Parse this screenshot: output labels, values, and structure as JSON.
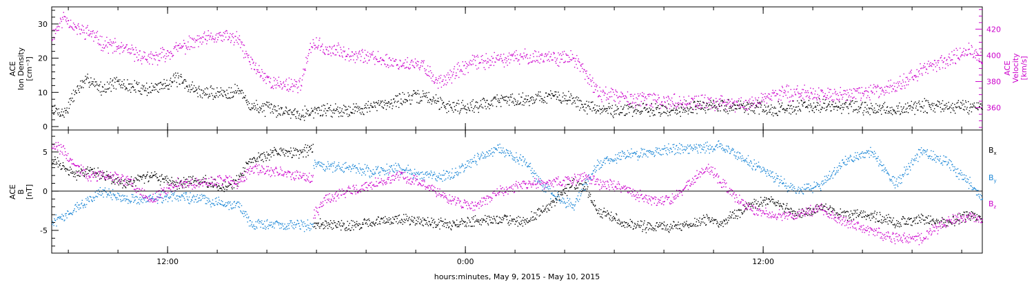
{
  "chart_data": [
    {
      "type": "scatter",
      "panel": "top",
      "left_axis": {
        "label_lines": [
          "ACE",
          "Ion Density",
          "[cm⁻³]"
        ],
        "ticks": [
          0,
          10,
          20,
          30
        ],
        "ylim": [
          -1,
          35
        ]
      },
      "right_axis": {
        "label_lines": [
          "ACE",
          "Velocity",
          "[km/s]"
        ],
        "ticks": [
          360,
          380,
          400,
          420
        ],
        "ylim": [
          343,
          437
        ]
      },
      "colors": {
        "density": "#000000",
        "velocity": "#cc00cc"
      },
      "series": [
        {
          "key": "density",
          "axis": "left",
          "anchors": [
            [
              0.0,
              5
            ],
            [
              0.5,
              4
            ],
            [
              1.0,
              11
            ],
            [
              1.5,
              14
            ],
            [
              2.0,
              11
            ],
            [
              2.5,
              13
            ],
            [
              3.0,
              12
            ],
            [
              4.0,
              11
            ],
            [
              5.0,
              14
            ],
            [
              6.0,
              10
            ],
            [
              7.0,
              10
            ],
            [
              7.5,
              11
            ],
            [
              8.0,
              6
            ],
            [
              9.0,
              5
            ],
            [
              10.0,
              4
            ],
            [
              11.0,
              5
            ],
            [
              12.0,
              5
            ],
            [
              13.0,
              6
            ],
            [
              14.0,
              8
            ],
            [
              15.0,
              9
            ],
            [
              16.0,
              6
            ],
            [
              17.0,
              6
            ],
            [
              18.0,
              8
            ],
            [
              19.0,
              8
            ],
            [
              20.0,
              9
            ],
            [
              21.0,
              8
            ],
            [
              21.5,
              6
            ],
            [
              22.0,
              5
            ],
            [
              23.0,
              5
            ],
            [
              24.0,
              5
            ],
            [
              25.0,
              5
            ],
            [
              26.0,
              6
            ],
            [
              27.0,
              6
            ],
            [
              28.0,
              6
            ],
            [
              29.0,
              5
            ],
            [
              30.0,
              6
            ],
            [
              31.0,
              6
            ],
            [
              32.0,
              6
            ],
            [
              33.0,
              5
            ],
            [
              34.0,
              5
            ],
            [
              35.0,
              6
            ],
            [
              36.0,
              6
            ],
            [
              37.0,
              6
            ],
            [
              37.5,
              6
            ]
          ]
        },
        {
          "key": "velocity",
          "axis": "right",
          "anchors": [
            [
              0.0,
              415
            ],
            [
              0.5,
              430
            ],
            [
              1.0,
              420
            ],
            [
              1.5,
              418
            ],
            [
              2.0,
              410
            ],
            [
              3.0,
              404
            ],
            [
              4.0,
              397
            ],
            [
              5.0,
              405
            ],
            [
              6.0,
              412
            ],
            [
              7.0,
              415
            ],
            [
              7.5,
              412
            ],
            [
              8.0,
              395
            ],
            [
              8.5,
              385
            ],
            [
              9.0,
              378
            ],
            [
              10.0,
              378
            ],
            [
              10.5,
              410
            ],
            [
              11.0,
              405
            ],
            [
              12.0,
              402
            ],
            [
              13.0,
              398
            ],
            [
              14.0,
              394
            ],
            [
              15.0,
              392
            ],
            [
              15.5,
              380
            ],
            [
              16.0,
              384
            ],
            [
              17.0,
              395
            ],
            [
              18.0,
              397
            ],
            [
              19.0,
              399
            ],
            [
              20.0,
              399
            ],
            [
              21.0,
              398
            ],
            [
              21.5,
              386
            ],
            [
              22.0,
              372
            ],
            [
              23.0,
              368
            ],
            [
              24.0,
              366
            ],
            [
              25.0,
              365
            ],
            [
              26.0,
              364
            ],
            [
              27.0,
              364
            ],
            [
              28.0,
              362
            ],
            [
              29.0,
              370
            ],
            [
              30.0,
              372
            ],
            [
              31.0,
              370
            ],
            [
              32.0,
              370
            ],
            [
              33.0,
              372
            ],
            [
              34.0,
              378
            ],
            [
              35.0,
              388
            ],
            [
              36.0,
              397
            ],
            [
              37.0,
              404
            ],
            [
              37.5,
              396
            ]
          ]
        }
      ]
    },
    {
      "type": "scatter",
      "panel": "bottom",
      "left_axis": {
        "label_lines": [
          "ACE",
          "B",
          "[nT]"
        ],
        "ticks": [
          -5,
          0,
          5
        ],
        "ylim": [
          -7.9,
          7.8
        ]
      },
      "legend": [
        {
          "label": "Bₓ",
          "color": "#000000"
        },
        {
          "label": "B_y",
          "color": "#1a86d6"
        },
        {
          "label": "B_z",
          "color": "#cc00cc"
        }
      ],
      "legend_text": {
        "bx": "B",
        "bx_sub": "x",
        "by": "B",
        "by_sub": "y",
        "bz": "B",
        "bz_sub": "z"
      },
      "series": [
        {
          "key": "bx",
          "color": "#000000",
          "anchors": [
            [
              0.0,
              4
            ],
            [
              0.5,
              3
            ],
            [
              1.0,
              2
            ],
            [
              1.5,
              3
            ],
            [
              2.0,
              2
            ],
            [
              3.0,
              1
            ],
            [
              4.0,
              2
            ],
            [
              5.0,
              1
            ],
            [
              6.0,
              1.5
            ],
            [
              7.0,
              0.5
            ],
            [
              7.5,
              1.5
            ],
            [
              8.0,
              4
            ],
            [
              9.0,
              5
            ],
            [
              10.0,
              5
            ],
            [
              10.5,
              5.5
            ],
            [
              10.55,
              -4
            ],
            [
              12.0,
              -4.3
            ],
            [
              13.0,
              -4
            ],
            [
              14.0,
              -3.5
            ],
            [
              15.0,
              -3.8
            ],
            [
              16.0,
              -4.2
            ],
            [
              17.0,
              -3.8
            ],
            [
              18.0,
              -3.5
            ],
            [
              19.0,
              -3.8
            ],
            [
              20.0,
              -2
            ],
            [
              21.0,
              1
            ],
            [
              21.5,
              0.5
            ],
            [
              22.0,
              -2.5
            ],
            [
              23.0,
              -4
            ],
            [
              24.0,
              -4.5
            ],
            [
              25.0,
              -4.5
            ],
            [
              26.0,
              -4
            ],
            [
              26.5,
              -3.5
            ],
            [
              27.0,
              -4
            ],
            [
              28.0,
              -2
            ],
            [
              29.0,
              -1
            ],
            [
              30.0,
              -3
            ],
            [
              31.0,
              -2
            ],
            [
              32.0,
              -3
            ],
            [
              33.0,
              -3
            ],
            [
              34.0,
              -4
            ],
            [
              35.0,
              -3.5
            ],
            [
              36.0,
              -4
            ],
            [
              37.0,
              -3
            ],
            [
              37.5,
              -3.5
            ]
          ]
        },
        {
          "key": "by",
          "color": "#1a86d6",
          "anchors": [
            [
              0.0,
              -4
            ],
            [
              0.5,
              -3
            ],
            [
              1.0,
              -2
            ],
            [
              1.5,
              -1
            ],
            [
              2.0,
              0
            ],
            [
              3.0,
              -1
            ],
            [
              4.0,
              -1
            ],
            [
              5.0,
              -0.5
            ],
            [
              6.0,
              -1
            ],
            [
              7.0,
              -1.5
            ],
            [
              7.5,
              -1.5
            ],
            [
              8.0,
              -4
            ],
            [
              9.0,
              -4.3
            ],
            [
              10.0,
              -4.3
            ],
            [
              10.5,
              -4.4
            ],
            [
              10.55,
              3.5
            ],
            [
              12.0,
              3
            ],
            [
              13.0,
              2.5
            ],
            [
              14.0,
              3
            ],
            [
              15.0,
              2
            ],
            [
              16.0,
              2
            ],
            [
              17.0,
              4
            ],
            [
              18.0,
              5.5
            ],
            [
              19.0,
              4
            ],
            [
              20.0,
              0
            ],
            [
              21.0,
              -2
            ],
            [
              21.5,
              1
            ],
            [
              22.0,
              3.5
            ],
            [
              23.0,
              4.5
            ],
            [
              24.0,
              5
            ],
            [
              25.0,
              5.5
            ],
            [
              26.0,
              5.5
            ],
            [
              27.0,
              5.8
            ],
            [
              28.0,
              4
            ],
            [
              29.0,
              2
            ],
            [
              30.0,
              0
            ],
            [
              31.0,
              1
            ],
            [
              32.0,
              4
            ],
            [
              33.0,
              5
            ],
            [
              34.0,
              1
            ],
            [
              35.0,
              5
            ],
            [
              36.0,
              4
            ],
            [
              37.0,
              1
            ],
            [
              37.5,
              -1
            ]
          ]
        },
        {
          "key": "bz",
          "color": "#cc00cc",
          "anchors": [
            [
              0.0,
              6
            ],
            [
              0.5,
              5
            ],
            [
              1.0,
              3
            ],
            [
              1.5,
              2
            ],
            [
              2.0,
              2
            ],
            [
              3.0,
              1.5
            ],
            [
              4.0,
              -1
            ],
            [
              5.0,
              1
            ],
            [
              6.0,
              1
            ],
            [
              7.0,
              1.5
            ],
            [
              7.5,
              1
            ],
            [
              8.0,
              3
            ],
            [
              9.0,
              2.5
            ],
            [
              10.0,
              2
            ],
            [
              10.5,
              1.5
            ],
            [
              10.55,
              -3
            ],
            [
              11.0,
              -1
            ],
            [
              12.0,
              0
            ],
            [
              13.0,
              1
            ],
            [
              14.0,
              2
            ],
            [
              15.0,
              1
            ],
            [
              16.0,
              -1
            ],
            [
              17.0,
              -2
            ],
            [
              18.0,
              0
            ],
            [
              19.0,
              1
            ],
            [
              20.0,
              1
            ],
            [
              21.0,
              1.5
            ],
            [
              21.5,
              2
            ],
            [
              22.0,
              1
            ],
            [
              23.0,
              0.5
            ],
            [
              24.0,
              -1
            ],
            [
              25.0,
              -1
            ],
            [
              26.0,
              2
            ],
            [
              26.5,
              3
            ],
            [
              27.0,
              1
            ],
            [
              28.0,
              -2
            ],
            [
              29.0,
              -3
            ],
            [
              30.0,
              -3
            ],
            [
              31.0,
              -2
            ],
            [
              32.0,
              -4
            ],
            [
              33.0,
              -5
            ],
            [
              34.0,
              -6
            ],
            [
              35.0,
              -6
            ],
            [
              36.0,
              -4
            ],
            [
              37.0,
              -3
            ],
            [
              37.5,
              -4
            ]
          ]
        }
      ]
    }
  ],
  "x_axis": {
    "unit": "hours from 2015-05-09 07:20",
    "xlim": [
      0,
      37.5
    ],
    "major_ticks": [
      {
        "x": 4.67,
        "label": "12:00"
      },
      {
        "x": 16.67,
        "label": "0:00"
      },
      {
        "x": 28.67,
        "label": "12:00"
      }
    ],
    "title": "hours:minutes, May  9, 2015 - May 10, 2015"
  }
}
